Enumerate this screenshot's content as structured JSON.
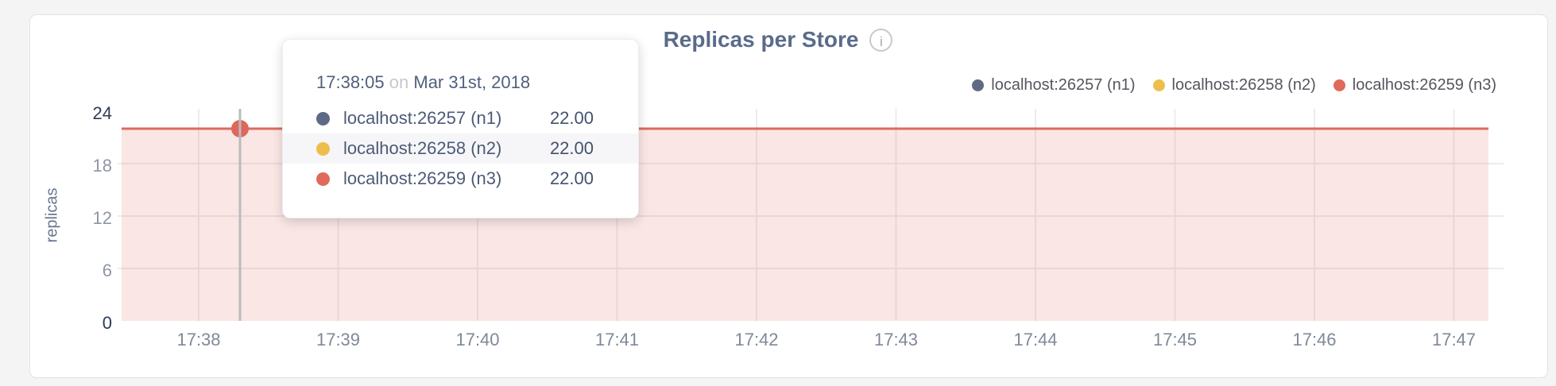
{
  "header": {
    "title": "Replicas per Store",
    "info_icon_glyph": "i"
  },
  "legend": {
    "items": [
      {
        "label": "localhost:26257 (n1)",
        "color": "#5f6a84"
      },
      {
        "label": "localhost:26258 (n2)",
        "color": "#eebe4d"
      },
      {
        "label": "localhost:26259 (n3)",
        "color": "#e0695c"
      }
    ]
  },
  "tooltip": {
    "time": "17:38:05",
    "connector": "on",
    "date": "Mar 31st, 2018",
    "rows": [
      {
        "label": "localhost:26257 (n1)",
        "value": "22.00",
        "color": "#5f6a84"
      },
      {
        "label": "localhost:26258 (n2)",
        "value": "22.00",
        "color": "#eebe4d"
      },
      {
        "label": "localhost:26259 (n3)",
        "value": "22.00",
        "color": "#e0695c"
      }
    ]
  },
  "chart_data": {
    "type": "area",
    "title": "Replicas per Store",
    "xlabel": "",
    "ylabel": "replicas",
    "x": [
      "17:38",
      "17:39",
      "17:40",
      "17:41",
      "17:42",
      "17:43",
      "17:44",
      "17:45",
      "17:46",
      "17:47"
    ],
    "y_ticks": [
      0,
      6,
      12,
      18,
      24
    ],
    "ylim": [
      0,
      24
    ],
    "grid": true,
    "legend_position": "top-right",
    "series": [
      {
        "name": "localhost:26257 (n1)",
        "color": "#5f6a84",
        "constant_value": 22.0
      },
      {
        "name": "localhost:26258 (n2)",
        "color": "#eebe4d",
        "constant_value": 22.0
      },
      {
        "name": "localhost:26259 (n3)",
        "color": "#e0695c",
        "constant_value": 22.0
      }
    ],
    "drawn_line_color": "#dc6a5d",
    "area_fill_color": "#e0695c",
    "area_fill_opacity": 0.17,
    "hover": {
      "time": "17:38:05",
      "value": 22.0
    },
    "crosshair_color": "#b9bcc0",
    "hover_dot_color": "#dc685c"
  }
}
